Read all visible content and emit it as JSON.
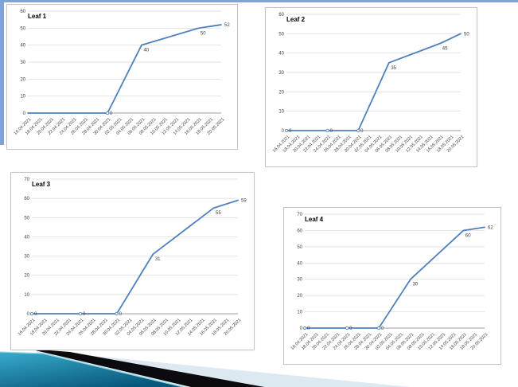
{
  "slide": {
    "background": "#ffffff",
    "top_border_color": "#7fa3d4",
    "left_border_color": "#7fa3d4",
    "decoration": {
      "pale_wedge_color": "#dde9f1",
      "black_stripe_color": "#0b0b0f",
      "teal_gradient_start": "#39abce",
      "teal_gradient_end": "#07587a",
      "teal_edge_highlight": "#8fd8e8"
    }
  },
  "chart_style": {
    "line_color": "#4f81bd",
    "grid_color": "#d8d8d8",
    "axis_color": "#9c9c9c",
    "tick_label_color": "#3f3f3f",
    "data_label_color": "#3f3f3f",
    "title_color": "#000000",
    "border_color": "#c4c4c4",
    "plot_background": "#ffffff"
  },
  "chart_data": [
    {
      "type": "line",
      "title": "Leaf 1",
      "xlabel": "",
      "ylabel": "",
      "ylim": [
        0,
        60
      ],
      "yticks": [
        0,
        10,
        20,
        30,
        40,
        50,
        60
      ],
      "grid": true,
      "legend": "none",
      "categories": [
        "16.04.2021",
        "18.04.2021",
        "20.04.2021",
        "22.04.2021",
        "24.04.2021",
        "26.04.2021",
        "28.04.2021",
        "30.04.2021",
        "02.05.2021",
        "04.05.2021",
        "06.05.2021",
        "08.05.2021",
        "10.05.2021",
        "12.05.2021",
        "14.05.2021",
        "16.05.2021",
        "18.05.2021",
        "20.05.2021"
      ],
      "values": [
        0,
        0,
        0,
        0,
        0,
        0,
        0,
        0,
        13.3,
        26.7,
        40,
        42,
        44,
        46,
        48,
        50,
        51,
        52
      ],
      "data_labels": [
        {
          "index": 7,
          "category": "30.04.2021",
          "text": "0"
        },
        {
          "index": 10,
          "category": "06.05.2021",
          "text": "40"
        },
        {
          "index": 15,
          "category": "16.05.2021",
          "text": "50"
        },
        {
          "index": 17,
          "category": "20.05.2021",
          "text": "52"
        }
      ],
      "marker_indices": [
        7
      ]
    },
    {
      "type": "line",
      "title": "Leaf 2",
      "xlabel": "",
      "ylabel": "",
      "ylim": [
        0,
        60
      ],
      "yticks": [
        0,
        10,
        20,
        30,
        40,
        50,
        60
      ],
      "grid": true,
      "legend": "none",
      "categories": [
        "16.04.2021",
        "18.04.2021",
        "20.04.2021",
        "22.04.2021",
        "24.04.2021",
        "26.04.2021",
        "28.04.2021",
        "30.04.2021",
        "02.05.2021",
        "04.05.2021",
        "06.05.2021",
        "08.05.2021",
        "10.05.2021",
        "12.05.2021",
        "14.05.2021",
        "16.05.2021",
        "18.05.2021",
        "20.05.2021"
      ],
      "values": [
        0,
        0,
        0,
        0,
        0,
        0,
        0,
        0,
        11.7,
        23.3,
        35,
        37,
        39,
        41,
        43,
        45,
        47.5,
        50
      ],
      "data_labels": [
        {
          "index": 0,
          "category": "16.04.2021",
          "text": "0"
        },
        {
          "index": 4,
          "category": "24.04.2021",
          "text": "0"
        },
        {
          "index": 7,
          "category": "30.04.2021",
          "text": "0"
        },
        {
          "index": 10,
          "category": "06.05.2021",
          "text": "35"
        },
        {
          "index": 15,
          "category": "16.05.2021",
          "text": "45"
        },
        {
          "index": 17,
          "category": "20.05.2021",
          "text": "50"
        }
      ],
      "marker_indices": [
        0,
        4,
        7
      ]
    },
    {
      "type": "line",
      "title": "Leaf 3",
      "xlabel": "",
      "ylabel": "",
      "ylim": [
        0,
        70
      ],
      "yticks": [
        0,
        10,
        20,
        30,
        40,
        50,
        60,
        70
      ],
      "grid": true,
      "legend": "none",
      "categories": [
        "16.04.2021",
        "18.04.2021",
        "20.04.2021",
        "22.04.2021",
        "24.04.2021",
        "26.04.2021",
        "28.04.2021",
        "30.04.2021",
        "02.05.2021",
        "04.05.2021",
        "06.05.2021",
        "08.05.2021",
        "10.05.2021",
        "12.05.2021",
        "14.05.2021",
        "16.05.2021",
        "18.05.2021",
        "20.05.2021"
      ],
      "values": [
        0,
        0,
        0,
        0,
        0,
        0,
        0,
        0,
        10.3,
        20.7,
        31,
        35.8,
        40.6,
        45.4,
        50.2,
        55,
        57,
        59
      ],
      "data_labels": [
        {
          "index": 0,
          "category": "16.04.2021",
          "text": "0"
        },
        {
          "index": 4,
          "category": "24.04.2021",
          "text": "0"
        },
        {
          "index": 7,
          "category": "30.04.2021",
          "text": "0"
        },
        {
          "index": 10,
          "category": "06.05.2021",
          "text": "31"
        },
        {
          "index": 15,
          "category": "16.05.2021",
          "text": "55"
        },
        {
          "index": 17,
          "category": "20.05.2021",
          "text": "59"
        }
      ],
      "marker_indices": [
        0,
        4,
        7
      ]
    },
    {
      "type": "line",
      "title": "Leaf 4",
      "xlabel": "",
      "ylabel": "",
      "ylim": [
        0,
        70
      ],
      "yticks": [
        0,
        10,
        20,
        30,
        40,
        50,
        60,
        70
      ],
      "grid": true,
      "legend": "none",
      "categories": [
        "16.04.2021",
        "18.04.2021",
        "20.04.2021",
        "22.04.2021",
        "24.04.2021",
        "26.04.2021",
        "28.04.2021",
        "30.04.2021",
        "02.05.2021",
        "04.05.2021",
        "06.05.2021",
        "08.05.2021",
        "10.05.2021",
        "12.05.2021",
        "14.05.2021",
        "16.05.2021",
        "18.05.2021",
        "20.05.2021"
      ],
      "values": [
        0,
        0,
        0,
        0,
        0,
        0,
        0,
        0,
        10,
        20,
        30,
        36,
        42,
        48,
        54,
        60,
        61,
        62
      ],
      "data_labels": [
        {
          "index": 0,
          "category": "16.04.2021",
          "text": "0"
        },
        {
          "index": 4,
          "category": "24.04.2021",
          "text": "0"
        },
        {
          "index": 7,
          "category": "30.04.2021",
          "text": "0"
        },
        {
          "index": 10,
          "category": "06.05.2021",
          "text": "30"
        },
        {
          "index": 15,
          "category": "16.05.2021",
          "text": "60"
        },
        {
          "index": 17,
          "category": "20.05.2021",
          "text": "62"
        }
      ],
      "marker_indices": [
        0,
        4,
        7
      ]
    }
  ]
}
